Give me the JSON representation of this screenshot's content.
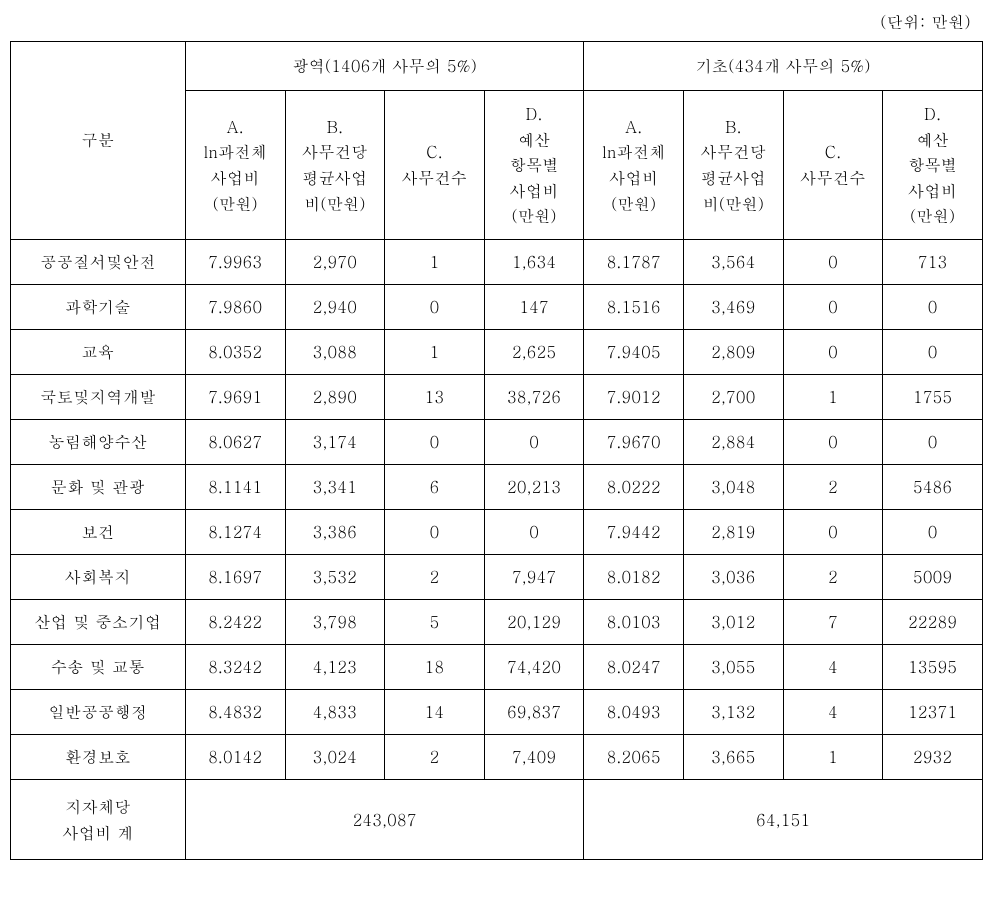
{
  "unit_label": "(단위: 만원)",
  "header": {
    "category": "구분",
    "group_a": "광역(1406개 사무의 5%)",
    "group_b": "기초(434개 사무의 5%)",
    "col_a": "A.\nln과전체\n사업비\n(만원)",
    "col_b": "B.\n사무건당\n평균사업\n비(만원)",
    "col_c": "C.\n사무건수",
    "col_d": "D.\n예산\n항목별\n사업비\n(만원)"
  },
  "rows": [
    {
      "cat": "공공질서및안전",
      "a1": "7.9963",
      "b1": "2,970",
      "c1": "1",
      "d1": "1,634",
      "a2": "8.1787",
      "b2": "3,564",
      "c2": "0",
      "d2": "713"
    },
    {
      "cat": "과학기술",
      "a1": "7.9860",
      "b1": "2,940",
      "c1": "0",
      "d1": "147",
      "a2": "8.1516",
      "b2": "3,469",
      "c2": "0",
      "d2": "0"
    },
    {
      "cat": "교육",
      "a1": "8.0352",
      "b1": "3,088",
      "c1": "1",
      "d1": "2,625",
      "a2": "7.9405",
      "b2": "2,809",
      "c2": "0",
      "d2": "0"
    },
    {
      "cat": "국토및지역개발",
      "a1": "7.9691",
      "b1": "2,890",
      "c1": "13",
      "d1": "38,726",
      "a2": "7.9012",
      "b2": "2,700",
      "c2": "1",
      "d2": "1755"
    },
    {
      "cat": "농림해양수산",
      "a1": "8.0627",
      "b1": "3,174",
      "c1": "0",
      "d1": "0",
      "a2": "7.9670",
      "b2": "2,884",
      "c2": "0",
      "d2": "0"
    },
    {
      "cat": "문화 및 관광",
      "a1": "8.1141",
      "b1": "3,341",
      "c1": "6",
      "d1": "20,213",
      "a2": "8.0222",
      "b2": "3,048",
      "c2": "2",
      "d2": "5486"
    },
    {
      "cat": "보건",
      "a1": "8.1274",
      "b1": "3,386",
      "c1": "0",
      "d1": "0",
      "a2": "7.9442",
      "b2": "2,819",
      "c2": "0",
      "d2": "0"
    },
    {
      "cat": "사회복지",
      "a1": "8.1697",
      "b1": "3,532",
      "c1": "2",
      "d1": "7,947",
      "a2": "8.0182",
      "b2": "3,036",
      "c2": "2",
      "d2": "5009"
    },
    {
      "cat": "산업 및 중소기업",
      "a1": "8.2422",
      "b1": "3,798",
      "c1": "5",
      "d1": "20,129",
      "a2": "8.0103",
      "b2": "3,012",
      "c2": "7",
      "d2": "22289"
    },
    {
      "cat": "수송 및 교통",
      "a1": "8.3242",
      "b1": "4,123",
      "c1": "18",
      "d1": "74,420",
      "a2": "8.0247",
      "b2": "3,055",
      "c2": "4",
      "d2": "13595"
    },
    {
      "cat": "일반공공행정",
      "a1": "8.4832",
      "b1": "4,833",
      "c1": "14",
      "d1": "69,837",
      "a2": "8.0493",
      "b2": "3,132",
      "c2": "4",
      "d2": "12371"
    },
    {
      "cat": "환경보호",
      "a1": "8.0142",
      "b1": "3,024",
      "c1": "2",
      "d1": "7,409",
      "a2": "8.2065",
      "b2": "3,665",
      "c2": "1",
      "d2": "2932"
    }
  ],
  "total": {
    "label": "지자체당\n사업비 계",
    "value_a": "243,087",
    "value_b": "64,151"
  }
}
